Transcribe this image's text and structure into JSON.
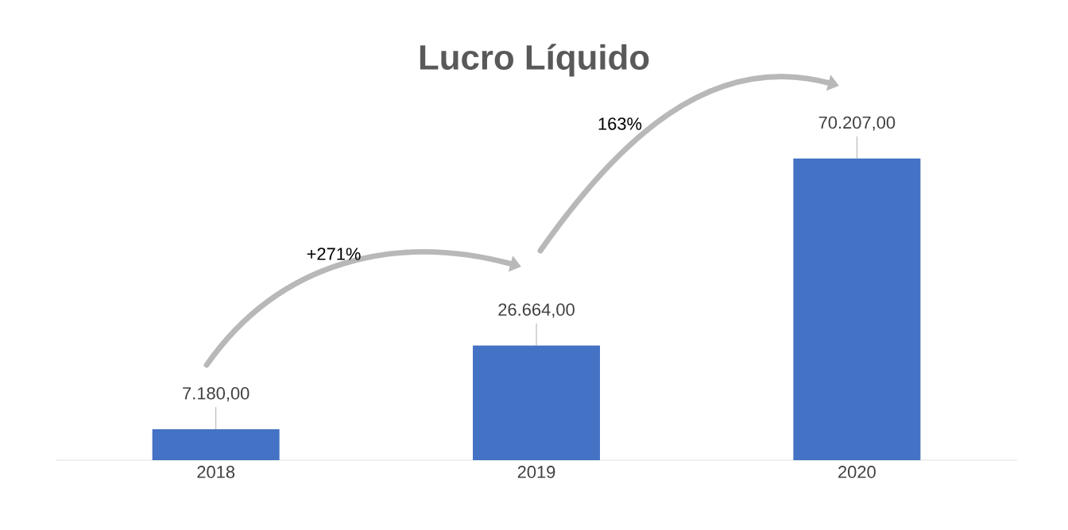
{
  "chart_data": {
    "type": "bar",
    "title": "Lucro Líquido",
    "categories": [
      "2018",
      "2019",
      "2020"
    ],
    "values": [
      7180,
      26664,
      70207
    ],
    "color": "#4472c4",
    "value_labels": [
      "7.180,00",
      "26.664,00",
      "70.207,00"
    ],
    "annotations": [
      "+271%",
      "163%"
    ]
  }
}
